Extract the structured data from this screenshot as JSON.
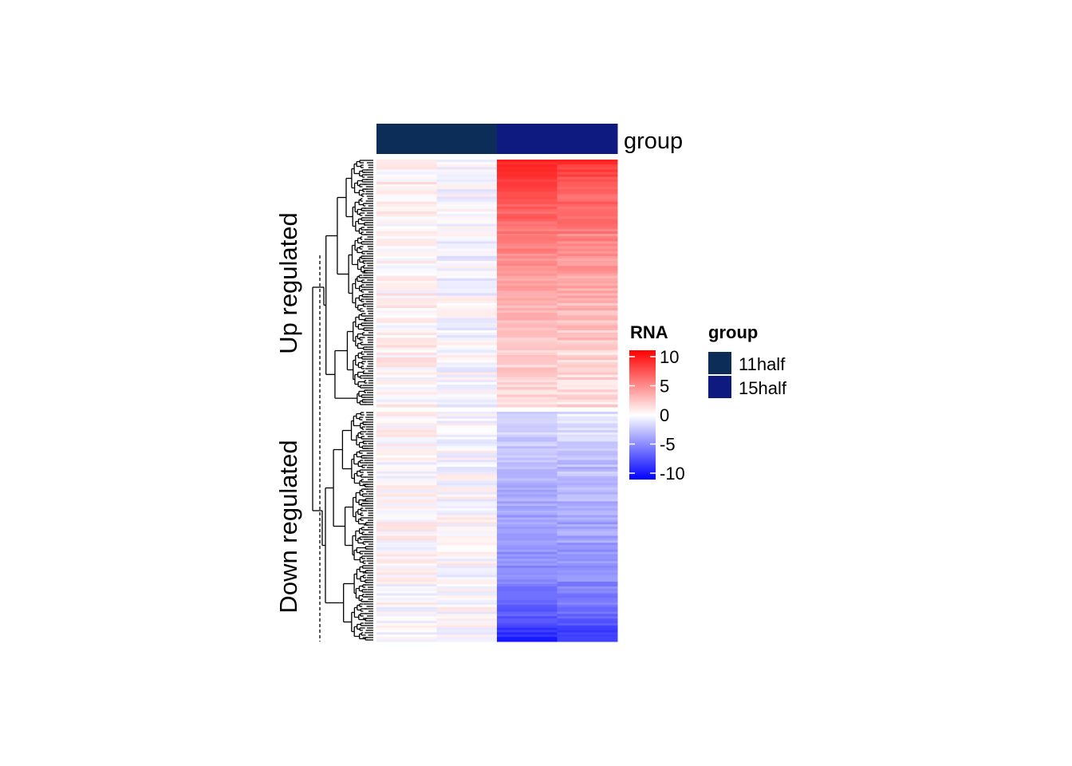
{
  "chart_data": {
    "type": "heatmap",
    "annotation": {
      "title": "group",
      "columns": [
        "11half",
        "11half",
        "15half",
        "15half"
      ],
      "colors": {
        "11half": "#0d2d59",
        "15half": "#0e1a80"
      }
    },
    "row_slices": [
      {
        "label": "Up regulated",
        "row_count": 100,
        "profile": {
          "11half": [
            0.3,
            -0.2
          ],
          "15half": [
            {
              "at": 0.0,
              "value": 8.5
            },
            {
              "at": 0.05,
              "value": 7.5
            },
            {
              "at": 0.28,
              "value": 5.0
            },
            {
              "at": 0.5,
              "value": 3.0
            },
            {
              "at": 0.8,
              "value": 1.5
            },
            {
              "at": 1.0,
              "value": 1.2
            }
          ]
        }
      },
      {
        "label": "Down regulated",
        "row_count": 100,
        "profile": {
          "11half": [
            0.1,
            0.0
          ],
          "15half": [
            {
              "at": 0.0,
              "value": -1.0
            },
            {
              "at": 0.3,
              "value": -2.5
            },
            {
              "at": 0.7,
              "value": -4.0
            },
            {
              "at": 0.9,
              "value": -6.0
            },
            {
              "at": 1.0,
              "value": -8.5
            }
          ]
        }
      }
    ],
    "color_scale": {
      "name": "RNA",
      "min": -10,
      "max": 10,
      "stops": [
        {
          "value": -10,
          "color": "#0000ff"
        },
        {
          "value": 0,
          "color": "#ffffff"
        },
        {
          "value": 10,
          "color": "#ff0000"
        }
      ],
      "ticks": [
        "10",
        "5",
        "0",
        "-5",
        "-10"
      ]
    },
    "legend": {
      "title": "group",
      "items": [
        {
          "label": "11half",
          "color": "#0d2d59"
        },
        {
          "label": "15half",
          "color": "#0e1a80"
        }
      ],
      "placement": "right"
    }
  }
}
